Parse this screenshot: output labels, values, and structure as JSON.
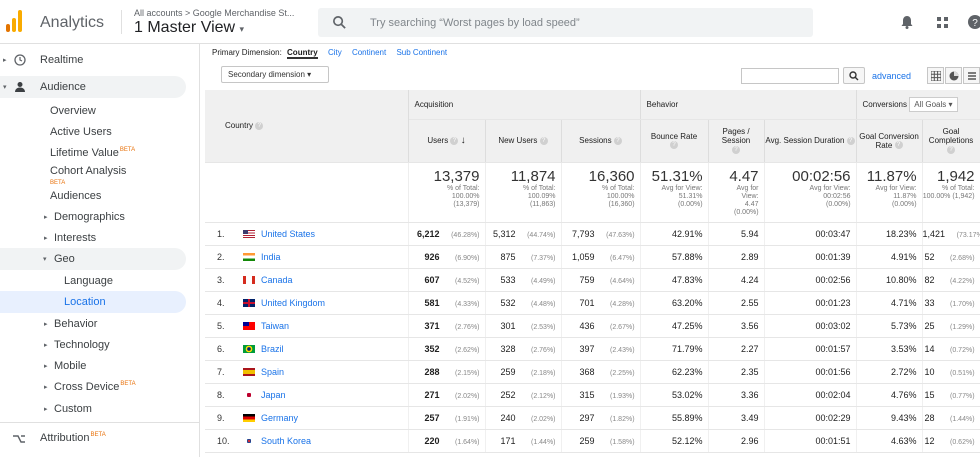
{
  "header": {
    "app_name": "Analytics",
    "account_path": "All accounts > Google Merchandise St...",
    "view_name": "1 Master View",
    "search_placeholder": "Try searching “Worst pages by load speed”"
  },
  "sidebar": {
    "realtime": "Realtime",
    "audience": "Audience",
    "items": [
      {
        "label": "Overview"
      },
      {
        "label": "Active Users"
      },
      {
        "label": "Lifetime Value",
        "badge": "BETA"
      },
      {
        "label": "Cohort Analysis",
        "badge": "BETA"
      },
      {
        "label": "Audiences"
      },
      {
        "label": "Demographics"
      },
      {
        "label": "Interests"
      },
      {
        "label": "Geo"
      },
      {
        "label": "Language"
      },
      {
        "label": "Location"
      },
      {
        "label": "Behavior"
      },
      {
        "label": "Technology"
      },
      {
        "label": "Mobile"
      },
      {
        "label": "Cross Device",
        "badge": "BETA"
      },
      {
        "label": "Custom"
      }
    ],
    "attribution": "Attribution",
    "attribution_badge": "BETA"
  },
  "dimensions": {
    "label": "Primary Dimension:",
    "current": "Country",
    "options": [
      "City",
      "Continent",
      "Sub Continent"
    ],
    "secondary": "Secondary dimension"
  },
  "toolbar": {
    "advanced": "advanced"
  },
  "table": {
    "groups": {
      "acquisition": "Acquisition",
      "behavior": "Behavior",
      "conversions": "Conversions",
      "goal_select": "All Goals"
    },
    "columns": {
      "country": "Country",
      "users": "Users",
      "new_users": "New Users",
      "sessions": "Sessions",
      "bounce_rate": "Bounce Rate",
      "pages_session": "Pages / Session",
      "avg_duration": "Avg. Session Duration",
      "conv_rate": "Goal Conversion Rate",
      "completions": "Goal Completions"
    },
    "totals": {
      "users": {
        "value": "13,379",
        "l1": "% of Total:",
        "l2": "100.00%",
        "l3": "(13,379)"
      },
      "new_users": {
        "value": "11,874",
        "l1": "% of Total:",
        "l2": "100.09%",
        "l3": "(11,863)"
      },
      "sessions": {
        "value": "16,360",
        "l1": "% of Total:",
        "l2": "100.00%",
        "l3": "(16,360)"
      },
      "bounce_rate": {
        "value": "51.31%",
        "l1": "Avg for View:",
        "l2": "51.31%",
        "l3": "(0.00%)"
      },
      "pages_session": {
        "value": "4.47",
        "l1": "Avg for",
        "l2": "View:",
        "l3": "4.47",
        "l4": "(0.00%)"
      },
      "avg_duration": {
        "value": "00:02:56",
        "l1": "Avg for View:",
        "l2": "00:02:56",
        "l3": "(0.00%)"
      },
      "conv_rate": {
        "value": "11.87%",
        "l1": "Avg for View:",
        "l2": "11.87%",
        "l3": "(0.00%)"
      },
      "completions": {
        "value": "1,942",
        "l1": "% of Total:",
        "l2": "100.00% (1,942)"
      }
    },
    "rows": [
      {
        "n": "1.",
        "country": "United States",
        "users": "6,212",
        "users_pct": "(46.28%)",
        "new_users": "5,312",
        "new_users_pct": "(44.74%)",
        "sessions": "7,793",
        "sessions_pct": "(47.63%)",
        "bounce": "42.91%",
        "pages": "5.94",
        "duration": "00:03:47",
        "conv": "18.23%",
        "comp": "1,421",
        "comp_pct": "(73.17%)"
      },
      {
        "n": "2.",
        "country": "India",
        "users": "926",
        "users_pct": "(6.90%)",
        "new_users": "875",
        "new_users_pct": "(7.37%)",
        "sessions": "1,059",
        "sessions_pct": "(6.47%)",
        "bounce": "57.88%",
        "pages": "2.89",
        "duration": "00:01:39",
        "conv": "4.91%",
        "comp": "52",
        "comp_pct": "(2.68%)"
      },
      {
        "n": "3.",
        "country": "Canada",
        "users": "607",
        "users_pct": "(4.52%)",
        "new_users": "533",
        "new_users_pct": "(4.49%)",
        "sessions": "759",
        "sessions_pct": "(4.64%)",
        "bounce": "47.83%",
        "pages": "4.24",
        "duration": "00:02:56",
        "conv": "10.80%",
        "comp": "82",
        "comp_pct": "(4.22%)"
      },
      {
        "n": "4.",
        "country": "United Kingdom",
        "users": "581",
        "users_pct": "(4.33%)",
        "new_users": "532",
        "new_users_pct": "(4.48%)",
        "sessions": "701",
        "sessions_pct": "(4.28%)",
        "bounce": "63.20%",
        "pages": "2.55",
        "duration": "00:01:23",
        "conv": "4.71%",
        "comp": "33",
        "comp_pct": "(1.70%)"
      },
      {
        "n": "5.",
        "country": "Taiwan",
        "users": "371",
        "users_pct": "(2.76%)",
        "new_users": "301",
        "new_users_pct": "(2.53%)",
        "sessions": "436",
        "sessions_pct": "(2.67%)",
        "bounce": "47.25%",
        "pages": "3.56",
        "duration": "00:03:02",
        "conv": "5.73%",
        "comp": "25",
        "comp_pct": "(1.29%)"
      },
      {
        "n": "6.",
        "country": "Brazil",
        "users": "352",
        "users_pct": "(2.62%)",
        "new_users": "328",
        "new_users_pct": "(2.76%)",
        "sessions": "397",
        "sessions_pct": "(2.43%)",
        "bounce": "71.79%",
        "pages": "2.27",
        "duration": "00:01:57",
        "conv": "3.53%",
        "comp": "14",
        "comp_pct": "(0.72%)"
      },
      {
        "n": "7.",
        "country": "Spain",
        "users": "288",
        "users_pct": "(2.15%)",
        "new_users": "259",
        "new_users_pct": "(2.18%)",
        "sessions": "368",
        "sessions_pct": "(2.25%)",
        "bounce": "62.23%",
        "pages": "2.35",
        "duration": "00:01:56",
        "conv": "2.72%",
        "comp": "10",
        "comp_pct": "(0.51%)"
      },
      {
        "n": "8.",
        "country": "Japan",
        "users": "271",
        "users_pct": "(2.02%)",
        "new_users": "252",
        "new_users_pct": "(2.12%)",
        "sessions": "315",
        "sessions_pct": "(1.93%)",
        "bounce": "53.02%",
        "pages": "3.36",
        "duration": "00:02:04",
        "conv": "4.76%",
        "comp": "15",
        "comp_pct": "(0.77%)"
      },
      {
        "n": "9.",
        "country": "Germany",
        "users": "257",
        "users_pct": "(1.91%)",
        "new_users": "240",
        "new_users_pct": "(2.02%)",
        "sessions": "297",
        "sessions_pct": "(1.82%)",
        "bounce": "55.89%",
        "pages": "3.49",
        "duration": "00:02:29",
        "conv": "9.43%",
        "comp": "28",
        "comp_pct": "(1.44%)"
      },
      {
        "n": "10.",
        "country": "South Korea",
        "users": "220",
        "users_pct": "(1.64%)",
        "new_users": "171",
        "new_users_pct": "(1.44%)",
        "sessions": "259",
        "sessions_pct": "(1.58%)",
        "bounce": "52.12%",
        "pages": "2.96",
        "duration": "00:01:51",
        "conv": "4.63%",
        "comp": "12",
        "comp_pct": "(0.62%)"
      }
    ]
  },
  "colors": {
    "accent": "#1a73e8",
    "logo_orange": "#f9ab00",
    "logo_dark": "#e37400",
    "selected_bg": "#e8f0fe"
  },
  "icons": [
    "analytics-logo-icon",
    "search-icon",
    "bell-icon",
    "apps-grid-icon",
    "help-icon",
    "clock-icon",
    "person-icon",
    "attribution-icon"
  ]
}
